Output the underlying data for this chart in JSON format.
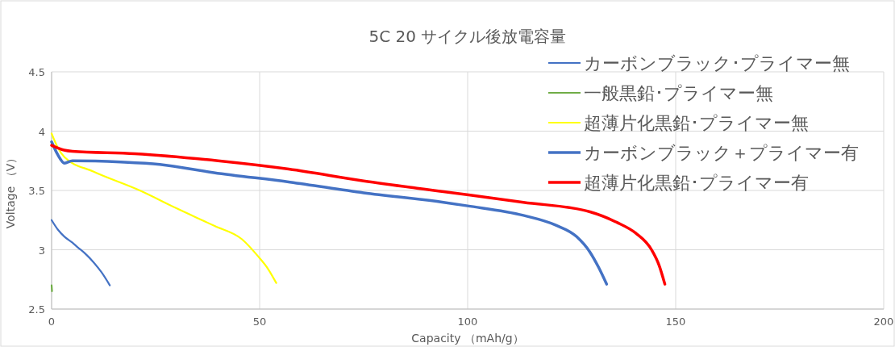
{
  "chart_data": {
    "type": "line",
    "title": "5C  20 サイクル後放電容量",
    "xlabel": "Capacity （mAh/g）",
    "ylabel": "Voltage （V）",
    "xlim": [
      0,
      200
    ],
    "xticks": [
      0,
      50,
      100,
      150,
      200
    ],
    "ylim": [
      2.5,
      4.5
    ],
    "yticks": [
      2.5,
      3,
      3.5,
      4,
      4.5
    ],
    "grid": true,
    "legend": "top right",
    "line_style": "solid",
    "series": [
      {
        "name": "カーボンブラック･プライマー無",
        "color": "#4472c4",
        "x": [
          0,
          1.5,
          3.1,
          5,
          6.3,
          8,
          10.2,
          12,
          14
        ],
        "values": [
          3.25,
          3.17,
          3.11,
          3.06,
          3.02,
          2.97,
          2.89,
          2.81,
          2.7
        ]
      },
      {
        "name": "一般黒鉛･プライマー無",
        "color": "#70ad47",
        "x": [
          0,
          0.1
        ],
        "values": [
          2.7,
          2.65
        ]
      },
      {
        "name": "超薄片化黒鉛･プライマー無",
        "color": "#ffff00",
        "x": [
          0,
          1.5,
          3.1,
          10,
          21.2,
          30,
          39.2,
          45.7,
          49.5,
          52,
          54
        ],
        "values": [
          3.98,
          3.86,
          3.78,
          3.66,
          3.5,
          3.35,
          3.2,
          3.09,
          2.95,
          2.84,
          2.72
        ]
      },
      {
        "name": "カーボンブラック＋プライマー有",
        "color": "#4472c4",
        "x": [
          0,
          1.5,
          3.1,
          5,
          16.6,
          26,
          39,
          57.3,
          75,
          94.2,
          100,
          113.4,
          121,
          126.2,
          129.4,
          131.5,
          133.4
        ],
        "values": [
          3.91,
          3.8,
          3.73,
          3.75,
          3.74,
          3.72,
          3.65,
          3.57,
          3.48,
          3.4,
          3.37,
          3.29,
          3.21,
          3.11,
          2.98,
          2.85,
          2.71
        ]
      },
      {
        "name": "超薄片化黒鉛･プライマー有",
        "color": "#ff0000",
        "x": [
          0,
          3,
          5,
          20,
          40,
          57,
          75,
          94.2,
          113.4,
          129.4,
          135.9,
          140.4,
          144.2,
          146,
          147.4
        ],
        "values": [
          3.88,
          3.84,
          3.83,
          3.81,
          3.75,
          3.68,
          3.58,
          3.49,
          3.4,
          3.32,
          3.23,
          3.14,
          3.0,
          2.87,
          2.71
        ]
      }
    ]
  }
}
